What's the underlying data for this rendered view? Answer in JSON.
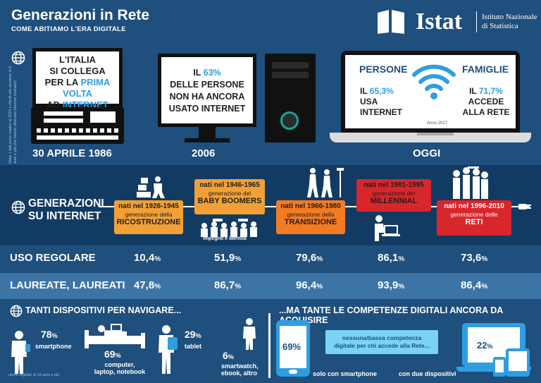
{
  "header": {
    "title": "Generazioni in Rete",
    "subtitle": "COME ABITIAMO L'ERA DIGITALE",
    "logo_word": "Istat",
    "logo_name_line1": "Istituto Nazionale",
    "logo_name_line2": "di Statistica"
  },
  "side_note": "Nota: I dati sono relativi al 2016 e riferiti alle persone di 6 anni e più che hanno utilizzato Internet (estratto)",
  "timeline": {
    "first": {
      "line1": "L'ITALIA",
      "line2": "SI COLLEGA",
      "line3a": "PER LA ",
      "line3b": "PRIMA VOLTA",
      "line4a": "AD ",
      "line4b": "INTERNET",
      "date": "30 APRILE 1986"
    },
    "second": {
      "line1a": "IL ",
      "line1b": "63%",
      "line2": "DELLE PERSONE",
      "line3": "NON HA ANCORA",
      "line4": "USATO INTERNET",
      "date": "2006"
    },
    "third": {
      "persone_heading": "PERSONE",
      "persone_line1a": "IL ",
      "persone_line1b": "65,3%",
      "persone_line2": "USA INTERNET",
      "famiglie_heading": "FAMIGLIE",
      "famiglie_line1a": "IL ",
      "famiglie_line1b": "71,7%",
      "famiglie_line2": "ACCEDE",
      "famiglie_line3": "ALLA RETE",
      "year": "Anno 2017",
      "date": "OGGI"
    }
  },
  "generations": {
    "title_line1": "GENERAZIONI",
    "title_line2": "SU INTERNET",
    "items": [
      {
        "born": "nati nel 1926-1945",
        "gen": "generazione della",
        "name": "RICOSTRUZIONE"
      },
      {
        "born": "nati nel 1946-1965",
        "gen": "generazione dei",
        "name": "BABY BOOMERS"
      },
      {
        "born": "nati nel 1966-1980",
        "gen": "generazione della",
        "name": "TRANSIZIONE"
      },
      {
        "born": "nati nel 1981-1995",
        "gen": "generazione dei",
        "name": "MILLENNIAL"
      },
      {
        "born": "nati nel 1996-2010",
        "gen": "generazione delle",
        "name": "RETI"
      }
    ],
    "impegno": "Impegno e identità"
  },
  "rows": [
    {
      "label": "USO REGOLARE",
      "values": [
        [
          "10,4",
          "%"
        ],
        [
          "51,9",
          "%"
        ],
        [
          "79,6",
          "%"
        ],
        [
          "86,1",
          "%"
        ],
        [
          "73,6",
          "%"
        ]
      ]
    },
    {
      "label": "LAUREATE, LAUREATI",
      "values": [
        [
          "47,8",
          "%"
        ],
        [
          "86,7",
          "%"
        ],
        [
          "96,4",
          "%"
        ],
        [
          "93,9",
          "%"
        ],
        [
          "86,4",
          "%"
        ]
      ]
    }
  ],
  "devices": {
    "title": "TANTI DISPOSITIVI PER NAVIGARE...",
    "smartphone": {
      "value": "78",
      "unit": "%",
      "label": "smartphone"
    },
    "computer": {
      "value": "69",
      "unit": "%",
      "label1": "computer,",
      "label2": "laptop, notebook"
    },
    "tablet": {
      "value": "29",
      "unit": "%",
      "label": "tablet"
    },
    "other": {
      "value": "6",
      "unit": "%",
      "label1": "smartwatch,",
      "label2": "ebook, altro"
    },
    "note": "utenti regolari di 15 anni e più"
  },
  "skills": {
    "title": "...MA TANTE LE COMPETENZE DIGITALI ANCORA DA ACQUISIRE",
    "phone_pct": "69%",
    "phone_label": "solo con smartphone",
    "box_line1": "nessuna/bassa competenza",
    "box_line2": "digitale per chi accede alla Rete...",
    "two_pct_value": "22",
    "two_pct_unit": "%",
    "two_label": "con due dispositivi"
  },
  "colors": {
    "navy": "#1f4f7c",
    "dark_band": "#123b63",
    "light_row": "#3d74a6",
    "accent_blue": "#2e9ee0",
    "orange_light": "#f2a036",
    "orange": "#f47b22",
    "red": "#d9262a",
    "teal": "#13a7a0"
  }
}
